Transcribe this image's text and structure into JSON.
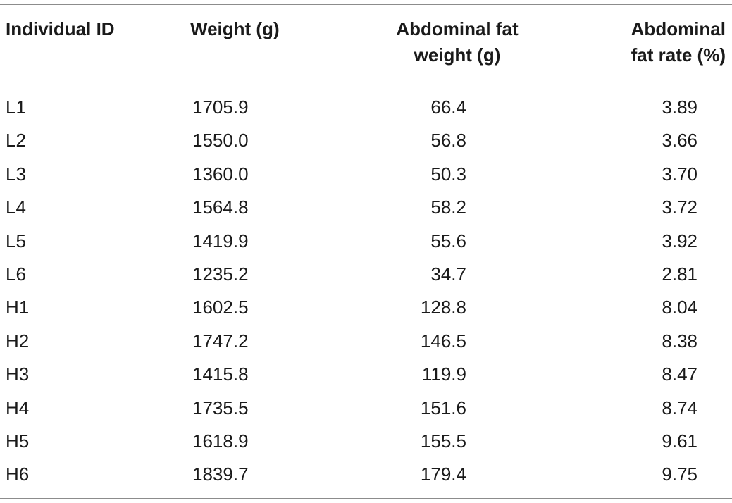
{
  "table": {
    "headers": {
      "individual_id": "Individual ID",
      "weight": "Weight (g)",
      "abdominal_fat_weight_line1": "Abdominal fat",
      "abdominal_fat_weight_line2": "weight (g)",
      "abdominal_fat_rate_line1": "Abdominal",
      "abdominal_fat_rate_line2": "fat rate (%)"
    },
    "rows": [
      {
        "id": "L1",
        "weight": "1705.9",
        "fat_weight": "66.4",
        "fat_rate": "3.89"
      },
      {
        "id": "L2",
        "weight": "1550.0",
        "fat_weight": "56.8",
        "fat_rate": "3.66"
      },
      {
        "id": "L3",
        "weight": "1360.0",
        "fat_weight": "50.3",
        "fat_rate": "3.70"
      },
      {
        "id": "L4",
        "weight": "1564.8",
        "fat_weight": "58.2",
        "fat_rate": "3.72"
      },
      {
        "id": "L5",
        "weight": "1419.9",
        "fat_weight": "55.6",
        "fat_rate": "3.92"
      },
      {
        "id": "L6",
        "weight": "1235.2",
        "fat_weight": "34.7",
        "fat_rate": "2.81"
      },
      {
        "id": "H1",
        "weight": "1602.5",
        "fat_weight": "128.8",
        "fat_rate": "8.04"
      },
      {
        "id": "H2",
        "weight": "1747.2",
        "fat_weight": "146.5",
        "fat_rate": "8.38"
      },
      {
        "id": "H3",
        "weight": "1415.8",
        "fat_weight": "119.9",
        "fat_rate": "8.47"
      },
      {
        "id": "H4",
        "weight": "1735.5",
        "fat_weight": "151.6",
        "fat_rate": "8.74"
      },
      {
        "id": "H5",
        "weight": "1618.9",
        "fat_weight": "155.5",
        "fat_rate": "9.61"
      },
      {
        "id": "H6",
        "weight": "1839.7",
        "fat_weight": "179.4",
        "fat_rate": "9.75"
      }
    ]
  }
}
